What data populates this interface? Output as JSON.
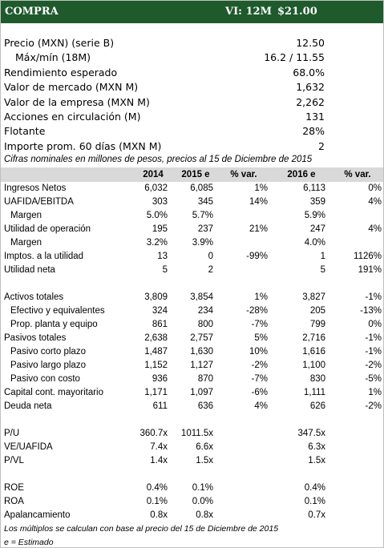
{
  "header": {
    "rating": "COMPRA",
    "horizon": "VI: 12M",
    "target_price": "$21.00"
  },
  "summary": [
    {
      "label": "Precio (MXN) (serie B)",
      "value": "12.50"
    },
    {
      "label": "Máx/mín (18M)",
      "value": "16.2 / 11.55",
      "indent": true
    },
    {
      "label": "Rendimiento esperado",
      "value": "68.0%"
    },
    {
      "label": "Valor de mercado (MXN M)",
      "value": "1,632"
    },
    {
      "label": "Valor de la empresa (MXN M)",
      "value": "2,262"
    },
    {
      "label": "Acciones en circulación (M)",
      "value": "131"
    },
    {
      "label": "Flotante",
      "value": "28%"
    },
    {
      "label": "Importe prom. 60 días (MXN M)",
      "value": "2"
    }
  ],
  "note": "Cifras nominales en millones de pesos, precios al 15 de Diciembre de 2015",
  "table": {
    "columns": [
      "2014",
      "2015 e",
      "% var.",
      "2016 e",
      "% var."
    ],
    "groups": [
      [
        {
          "label": "Ingresos Netos",
          "values": [
            "6,032",
            "6,085",
            "1%",
            "6,113",
            "0%"
          ]
        },
        {
          "label": "UAFIDA/EBITDA",
          "values": [
            "303",
            "345",
            "14%",
            "359",
            "4%"
          ]
        },
        {
          "label": "Margen",
          "values": [
            "5.0%",
            "5.7%",
            null,
            "5.9%",
            null
          ],
          "indent": true
        },
        {
          "label": "Utilidad de operación",
          "values": [
            "195",
            "237",
            "21%",
            "247",
            "4%"
          ]
        },
        {
          "label": "Margen",
          "values": [
            "3.2%",
            "3.9%",
            null,
            "4.0%",
            null
          ],
          "indent": true
        },
        {
          "label": "Imptos. a la utilidad",
          "values": [
            "13",
            "0",
            "-99%",
            "1",
            "1126%"
          ]
        },
        {
          "label": "Utilidad neta",
          "values": [
            "5",
            "2",
            null,
            "5",
            "191%"
          ]
        }
      ],
      [
        {
          "label": "Activos totales",
          "values": [
            "3,809",
            "3,854",
            "1%",
            "3,827",
            "-1%"
          ]
        },
        {
          "label": "Efectivo y equivalentes",
          "values": [
            "324",
            "234",
            "-28%",
            "205",
            "-13%"
          ],
          "indent": true
        },
        {
          "label": "Prop. planta y equipo",
          "values": [
            "861",
            "800",
            "-7%",
            "799",
            "0%"
          ],
          "indent": true
        },
        {
          "label": "Pasivos totales",
          "values": [
            "2,638",
            "2,757",
            "5%",
            "2,716",
            "-1%"
          ]
        },
        {
          "label": "Pasivo corto plazo",
          "values": [
            "1,487",
            "1,630",
            "10%",
            "1,616",
            "-1%"
          ],
          "indent": true
        },
        {
          "label": "Pasivo largo plazo",
          "values": [
            "1,152",
            "1,127",
            "-2%",
            "1,100",
            "-2%"
          ],
          "indent": true
        },
        {
          "label": "Pasivo con costo",
          "values": [
            "936",
            "870",
            "-7%",
            "830",
            "-5%"
          ],
          "indent": true
        },
        {
          "label": "Capital cont. mayoritario",
          "values": [
            "1,171",
            "1,097",
            "-6%",
            "1,111",
            "1%"
          ]
        },
        {
          "label": "Deuda neta",
          "values": [
            "611",
            "636",
            "4%",
            "626",
            "-2%"
          ]
        }
      ],
      [
        {
          "label": "P/U",
          "values": [
            "360.7x",
            "1011.5x",
            null,
            "347.5x",
            null
          ]
        },
        {
          "label": "VE/UAFIDA",
          "values": [
            "7.4x",
            "6.6x",
            null,
            "6.3x",
            null
          ]
        },
        {
          "label": "P/VL",
          "values": [
            "1.4x",
            "1.5x",
            null,
            "1.5x",
            null
          ]
        }
      ],
      [
        {
          "label": "ROE",
          "values": [
            "0.4%",
            "0.1%",
            null,
            "0.4%",
            null
          ]
        },
        {
          "label": "ROA",
          "values": [
            "0.1%",
            "0.0%",
            null,
            "0.1%",
            null
          ]
        },
        {
          "label": "Apalancamiento",
          "values": [
            "0.8x",
            "0.8x",
            null,
            "0.7x",
            null
          ]
        }
      ]
    ]
  },
  "footnotes": [
    "Los múltiplos se calculan con base al precio del 15 de Diciembre de 2015",
    "e = Estimado"
  ]
}
